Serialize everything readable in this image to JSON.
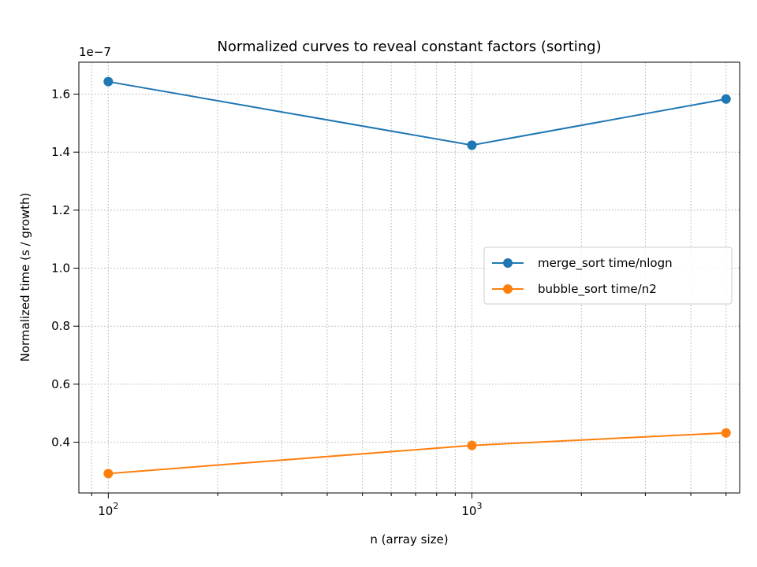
{
  "chart_data": {
    "type": "line",
    "title": "Normalized curves to reveal constant factors (sorting)",
    "xlabel": "n (array size)",
    "ylabel": "Normalized time (s / growth)",
    "xscale": "log",
    "xlim": [
      83,
      5450
    ],
    "ylim": [
      0.225,
      1.71
    ],
    "y_offset_label": "1e−7",
    "x_major_ticks": [
      {
        "value": 100,
        "base": "10",
        "exp": "2"
      },
      {
        "value": 1000,
        "base": "10",
        "exp": "3"
      }
    ],
    "x_minor_ticks": [
      90,
      200,
      300,
      400,
      500,
      600,
      700,
      800,
      900,
      2000,
      3000,
      4000,
      5000
    ],
    "y_ticks": [
      {
        "value": 0.4,
        "label": "0.4"
      },
      {
        "value": 0.6,
        "label": "0.6"
      },
      {
        "value": 0.8,
        "label": "0.8"
      },
      {
        "value": 1.0,
        "label": "1.0"
      },
      {
        "value": 1.2,
        "label": "1.2"
      },
      {
        "value": 1.4,
        "label": "1.4"
      },
      {
        "value": 1.6,
        "label": "1.6"
      }
    ],
    "grid": true,
    "legend_position": "center-right",
    "series": [
      {
        "name": "merge_sort time/nlogn",
        "color": "#1f77b4",
        "x": [
          100,
          1000,
          5000
        ],
        "y": [
          1.643,
          1.424,
          1.583
        ]
      },
      {
        "name": "bubble_sort time/n2",
        "color": "#ff7f0e",
        "x": [
          100,
          1000,
          5000
        ],
        "y": [
          0.292,
          0.389,
          0.432
        ]
      }
    ]
  }
}
